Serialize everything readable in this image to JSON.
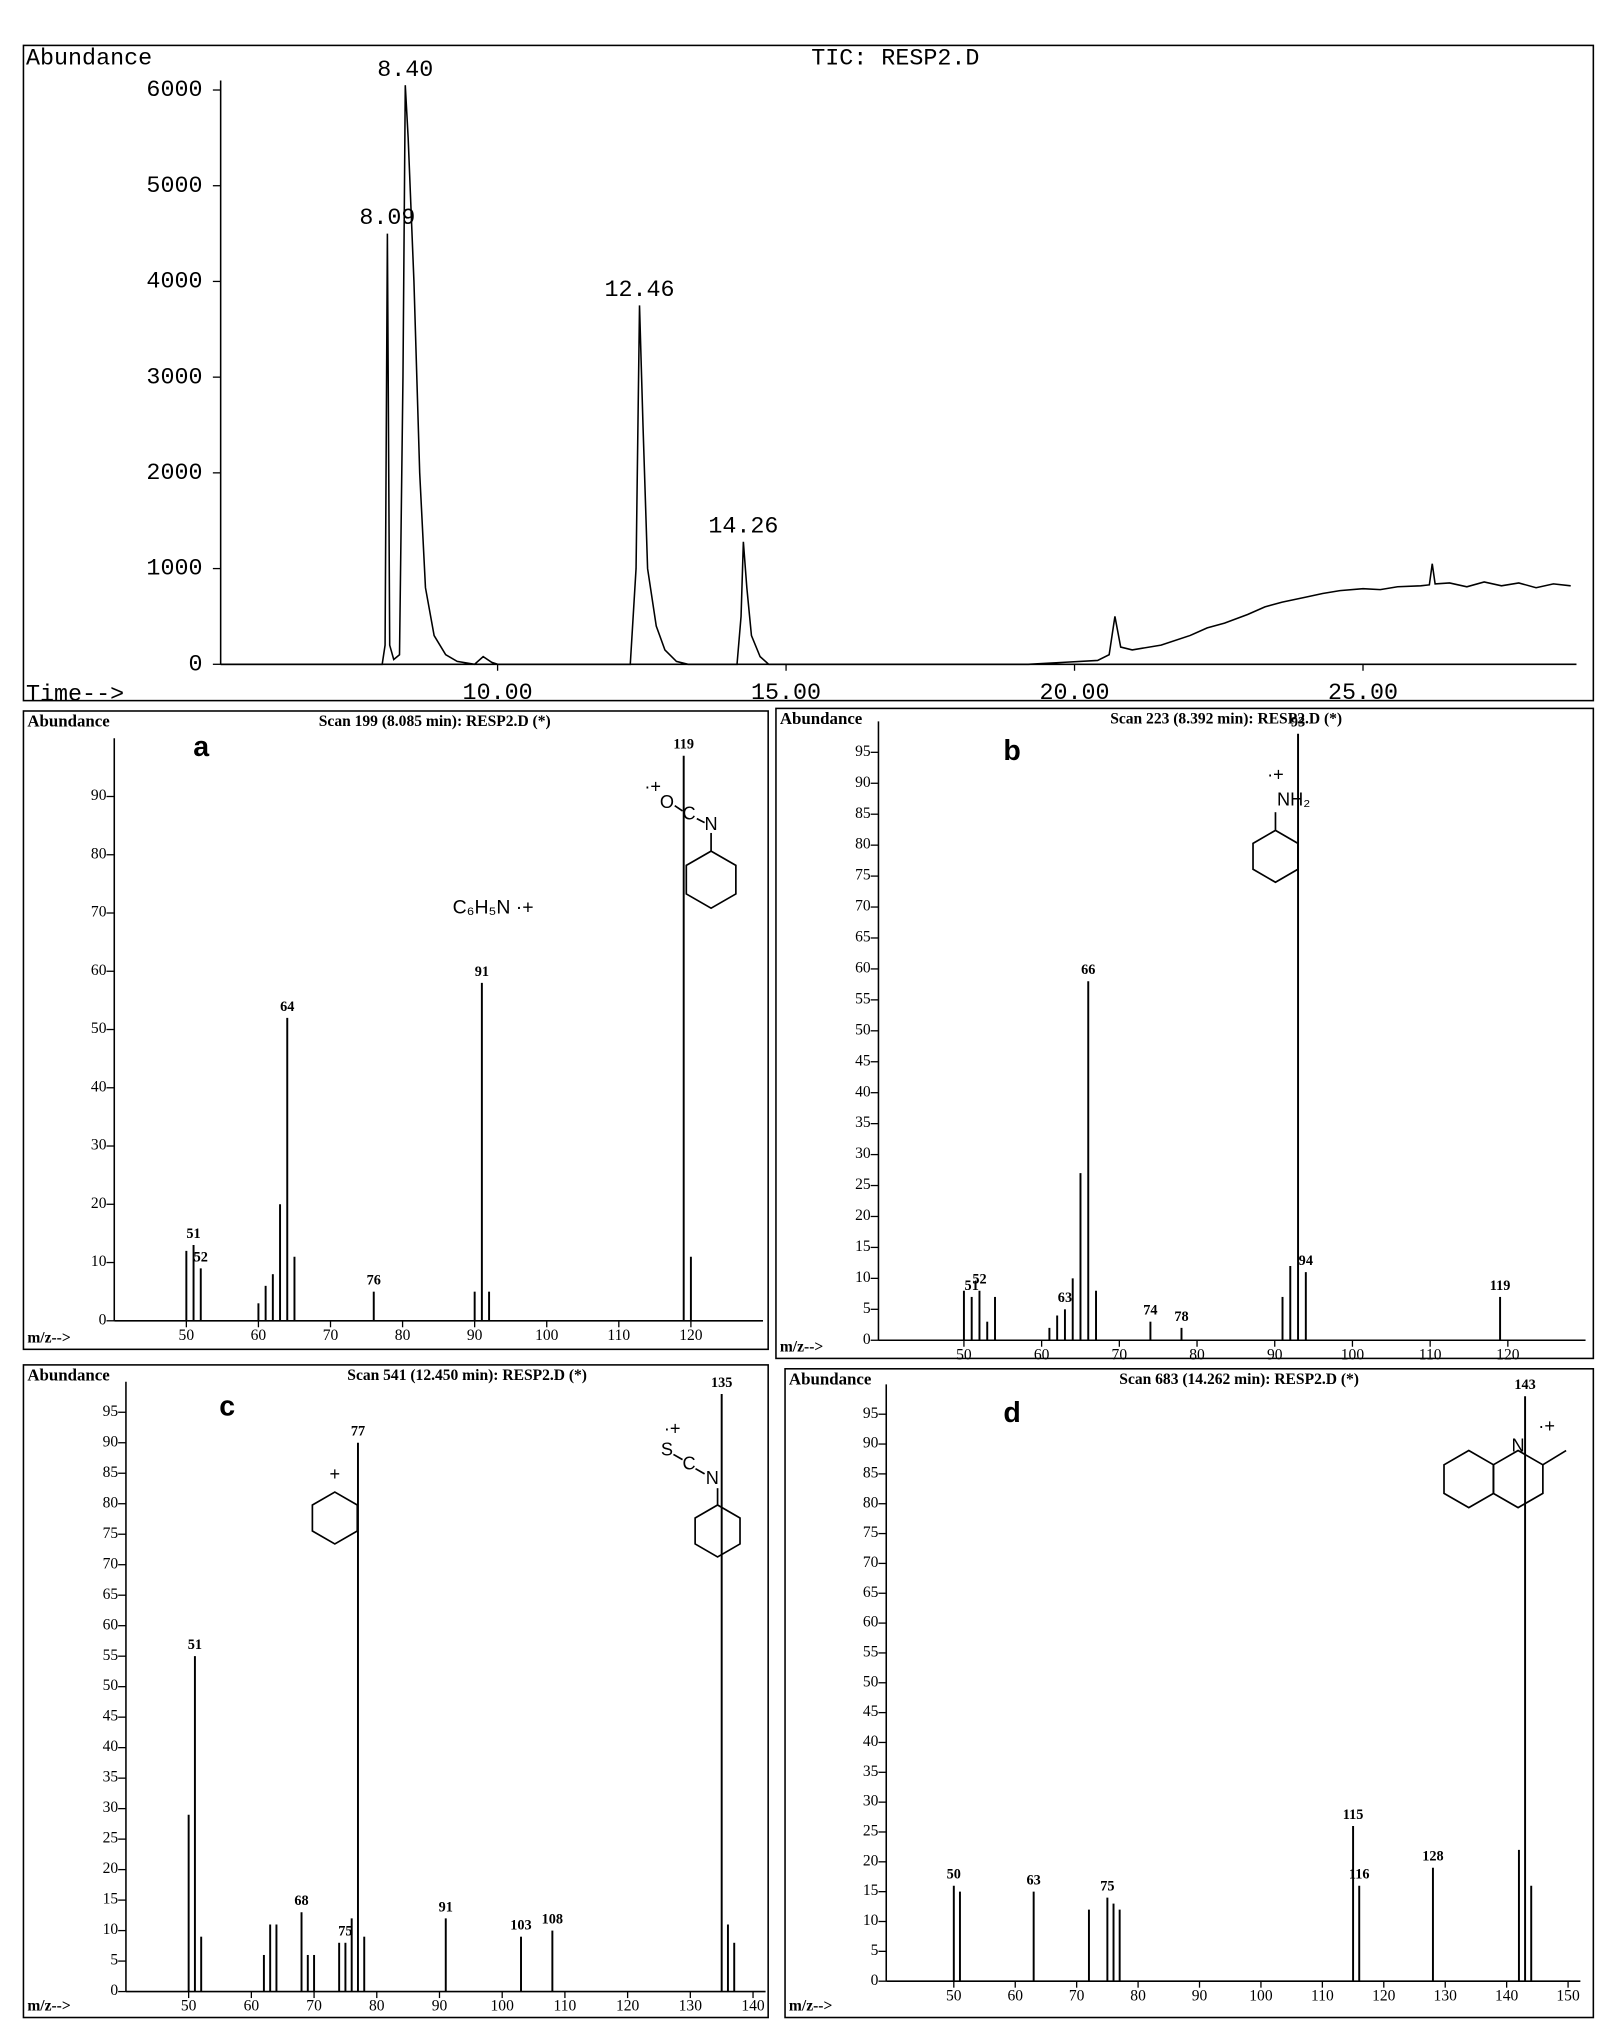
{
  "chart_data": [
    {
      "type": "line",
      "title": "TIC: RESP2.D",
      "ylabel": "Abundance",
      "xlabel": "Time-->",
      "color": "#000000",
      "x": [
        5.2,
        8.0,
        8.05,
        8.09,
        8.13,
        8.2,
        8.3,
        8.36,
        8.4,
        8.45,
        8.55,
        8.65,
        8.75,
        8.9,
        9.1,
        9.3,
        9.6,
        9.75,
        9.9,
        10.0,
        12.3,
        12.4,
        12.46,
        12.52,
        12.6,
        12.75,
        12.9,
        13.1,
        13.3,
        14.15,
        14.22,
        14.26,
        14.32,
        14.4,
        14.55,
        14.7,
        19.2,
        19.8,
        20.4,
        20.6,
        20.7,
        20.8,
        21.0,
        21.5,
        22.0,
        22.3,
        22.6,
        23.0,
        23.3,
        23.6,
        24.0,
        24.3,
        24.6,
        25.0,
        25.3,
        25.6,
        26.0,
        26.15,
        26.2,
        26.25,
        26.5,
        26.8,
        27.1,
        27.4,
        27.7,
        28.0,
        28.3,
        28.6
      ],
      "values": [
        0,
        0,
        200,
        4500,
        200,
        50,
        100,
        3000,
        6050,
        5500,
        4000,
        2000,
        800,
        300,
        100,
        30,
        0,
        80,
        20,
        0,
        0,
        1000,
        3750,
        2500,
        1000,
        400,
        150,
        30,
        0,
        0,
        500,
        1280,
        800,
        300,
        80,
        0,
        0,
        20,
        40,
        100,
        500,
        180,
        150,
        200,
        300,
        380,
        430,
        520,
        600,
        650,
        700,
        740,
        770,
        790,
        780,
        810,
        820,
        830,
        1050,
        840,
        850,
        810,
        860,
        820,
        850,
        800,
        840,
        820
      ],
      "xlim": [
        5.2,
        28.7
      ],
      "ylim": [
        0,
        6100
      ],
      "yticks": [
        0,
        1000,
        2000,
        3000,
        4000,
        5000,
        6000
      ],
      "xticks": [
        {
          "value": 10,
          "label": "10.00"
        },
        {
          "value": 15,
          "label": "15.00"
        },
        {
          "value": 20,
          "label": "20.00"
        },
        {
          "value": 25,
          "label": "25.00"
        }
      ],
      "peak_labels": [
        {
          "value": 8.4,
          "label": "8.40"
        },
        {
          "value": 8.09,
          "label": "8.09"
        },
        {
          "value": 12.46,
          "label": "12.46"
        },
        {
          "value": 14.26,
          "label": "14.26"
        }
      ]
    },
    {
      "type": "stick",
      "panel": "a",
      "title": "Scan 199 (8.085 min): RESP2.D (*)",
      "ylabel": "Abundance",
      "xlabel": "m/z-->",
      "color": "#000000",
      "x": [
        50,
        51,
        52,
        60,
        61,
        62,
        63,
        64,
        65,
        76,
        90,
        91,
        92,
        119,
        120
      ],
      "values": [
        12,
        13,
        9,
        3,
        6,
        8,
        20,
        52,
        11,
        5,
        5,
        58,
        5,
        97,
        11
      ],
      "xlim": [
        40,
        130
      ],
      "ylim": [
        0,
        100
      ],
      "xticks": [
        50,
        60,
        70,
        80,
        90,
        100,
        110,
        120
      ],
      "yticks": [
        0,
        10,
        20,
        30,
        40,
        50,
        60,
        70,
        80,
        90
      ],
      "peak_labels": [
        51,
        52,
        64,
        76,
        91,
        119
      ],
      "annotations": [
        "C₆H₅N ·+"
      ],
      "structure_labels": [
        "·+",
        "O",
        "C",
        "N"
      ]
    },
    {
      "type": "stick",
      "panel": "b",
      "title": "Scan 223 (8.392 min): RESP2.D (*)",
      "ylabel": "Abundance",
      "xlabel": "m/z-->",
      "color": "#000000",
      "x": [
        50,
        51,
        52,
        53,
        54,
        61,
        62,
        63,
        64,
        65,
        66,
        67,
        74,
        78,
        91,
        92,
        93,
        94,
        119
      ],
      "values": [
        8,
        7,
        8,
        3,
        7,
        2,
        4,
        5,
        10,
        27,
        58,
        8,
        3,
        2,
        7,
        12,
        98,
        11,
        7
      ],
      "xlim": [
        39,
        130
      ],
      "ylim": [
        0,
        100
      ],
      "xticks": [
        50,
        60,
        70,
        80,
        90,
        100,
        110,
        120
      ],
      "yticks": [
        0,
        5,
        10,
        15,
        20,
        25,
        30,
        35,
        40,
        45,
        50,
        55,
        60,
        65,
        70,
        75,
        80,
        85,
        90,
        95
      ],
      "peak_labels": [
        51,
        52,
        63,
        66,
        74,
        78,
        93,
        94,
        119
      ],
      "structure_labels": [
        "·+",
        "NH₂"
      ]
    },
    {
      "type": "stick",
      "panel": "c",
      "title": "Scan 541 (12.450 min): RESP2.D (*)",
      "ylabel": "Abundance",
      "xlabel": "m/z-->",
      "color": "#000000",
      "x": [
        50,
        51,
        52,
        62,
        63,
        64,
        68,
        69,
        70,
        74,
        75,
        76,
        77,
        78,
        91,
        103,
        108,
        135,
        136,
        137
      ],
      "values": [
        29,
        55,
        9,
        6,
        11,
        11,
        13,
        6,
        6,
        8,
        8,
        12,
        90,
        9,
        12,
        9,
        10,
        98,
        11,
        8
      ],
      "xlim": [
        40,
        142
      ],
      "ylim": [
        0,
        100
      ],
      "xticks": [
        50,
        60,
        70,
        80,
        90,
        100,
        110,
        120,
        130,
        140
      ],
      "yticks": [
        0,
        5,
        10,
        15,
        20,
        25,
        30,
        35,
        40,
        45,
        50,
        55,
        60,
        65,
        70,
        75,
        80,
        85,
        90,
        95
      ],
      "peak_labels": [
        51,
        68,
        75,
        77,
        91,
        103,
        108,
        135
      ],
      "structure_labels": [
        "+",
        "·+",
        "S",
        "C",
        "N"
      ]
    },
    {
      "type": "stick",
      "panel": "d",
      "title": "Scan 683 (14.262 min): RESP2.D (*)",
      "ylabel": "Abundance",
      "xlabel": "m/z-->",
      "color": "#000000",
      "x": [
        50,
        51,
        63,
        72,
        75,
        76,
        77,
        115,
        116,
        128,
        142,
        143,
        144
      ],
      "values": [
        16,
        15,
        15,
        12,
        14,
        13,
        12,
        26,
        16,
        19,
        22,
        98,
        16
      ],
      "xlim": [
        39,
        152
      ],
      "ylim": [
        0,
        100
      ],
      "xticks": [
        50,
        60,
        70,
        80,
        90,
        100,
        110,
        120,
        130,
        140,
        150
      ],
      "yticks": [
        0,
        5,
        10,
        15,
        20,
        25,
        30,
        35,
        40,
        45,
        50,
        55,
        60,
        65,
        70,
        75,
        80,
        85,
        90,
        95
      ],
      "peak_labels": [
        50,
        63,
        75,
        115,
        116,
        128,
        143
      ],
      "structure_labels": [
        "N",
        "·+"
      ]
    }
  ]
}
